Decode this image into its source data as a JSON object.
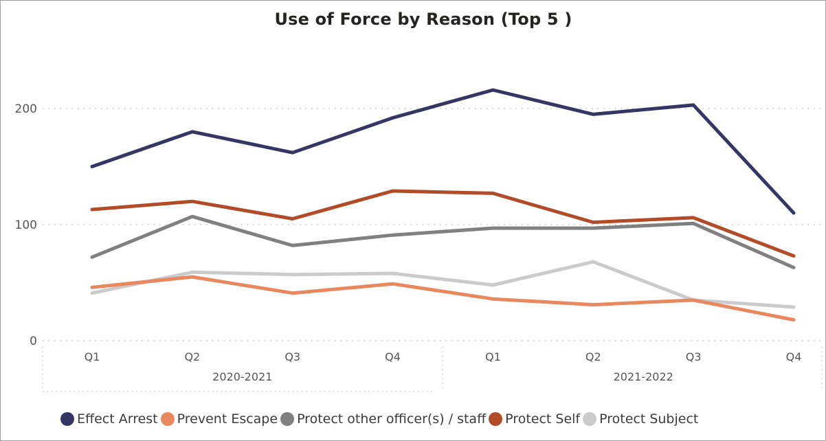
{
  "chart_data": {
    "type": "line",
    "title": "Use of Force by Reason (Top 5 )",
    "xlabel": "",
    "ylabel": "",
    "ylim": [
      0,
      230
    ],
    "y_ticks": [
      "0",
      "100",
      "200"
    ],
    "y_tick_values": [
      0,
      100,
      200
    ],
    "grid": "horizontal dotted",
    "legend_position": "bottom",
    "x_groups": [
      {
        "label": "2020-2021",
        "quarters": [
          "Q1",
          "Q2",
          "Q3",
          "Q4"
        ]
      },
      {
        "label": "2021-2022",
        "quarters": [
          "Q1",
          "Q2",
          "Q3",
          "Q4"
        ]
      }
    ],
    "categories": [
      "Q1",
      "Q2",
      "Q3",
      "Q4",
      "Q1",
      "Q2",
      "Q3",
      "Q4"
    ],
    "series": [
      {
        "name": "Effect Arrest",
        "color": "#353664",
        "values": [
          150,
          180,
          162,
          192,
          216,
          195,
          203,
          110
        ]
      },
      {
        "name": "Prevent Escape",
        "color": "#e9875e",
        "values": [
          46,
          55,
          41,
          49,
          36,
          31,
          35,
          18
        ]
      },
      {
        "name": "Protect other officer(s) / staff",
        "color": "#808080",
        "values": [
          72,
          107,
          82,
          91,
          97,
          97,
          101,
          63
        ]
      },
      {
        "name": "Protect Self",
        "color": "#b14b28",
        "values": [
          113,
          120,
          105,
          129,
          127,
          102,
          106,
          73
        ]
      },
      {
        "name": "Protect Subject",
        "color": "#cbcbcb",
        "values": [
          41,
          59,
          57,
          58,
          48,
          68,
          35,
          29
        ]
      }
    ]
  }
}
